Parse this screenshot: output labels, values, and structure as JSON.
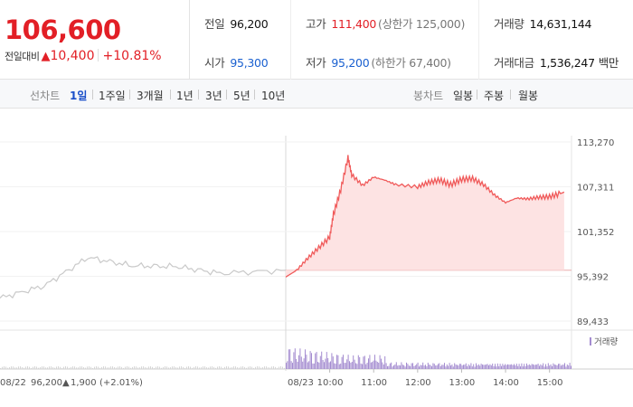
{
  "quote": {
    "price": "106,600",
    "change_label": "전일대비",
    "change_arrow": "▲",
    "change_value": "10,400",
    "change_pct": "+10.81%"
  },
  "stats": {
    "prev_close_label": "전일",
    "prev_close": "96,200",
    "open_label": "시가",
    "open": "95,300",
    "high_label": "고가",
    "high": "111,400",
    "upper_limit": "(상한가 125,000)",
    "low_label": "저가",
    "low": "95,200",
    "lower_limit": "(하한가 67,400)",
    "volume_label": "거래량",
    "volume": "14,631,144",
    "turnover_label": "거래대금",
    "turnover": "1,536,247",
    "turnover_unit": "백만"
  },
  "toolbar": {
    "line_chart_label": "선차트",
    "periods": [
      "1일",
      "1주일",
      "3개월",
      "1년",
      "3년",
      "5년",
      "10년"
    ],
    "active_period": "1일",
    "candle_chart_label": "봉차트",
    "candle_periods": [
      "일봉",
      "주봉",
      "월봉"
    ]
  },
  "chart_data": {
    "type": "area",
    "y_ticks": [
      "113,270",
      "107,311",
      "101,352",
      "95,392",
      "89,433"
    ],
    "y_tick_values": [
      113270,
      107311,
      101352,
      95392,
      89433
    ],
    "ylim": [
      89433,
      113270
    ],
    "baseline_value": 96200,
    "prev_day": {
      "label": "08/22",
      "times": [
        "09:00",
        "10:00",
        "11:00",
        "12:00",
        "13:00",
        "14:00",
        "15:30"
      ],
      "values": [
        92500,
        94100,
        97900,
        96800,
        96700,
        95800,
        96200
      ]
    },
    "today": {
      "label": "08/23",
      "x": [
        "09:00",
        "09:15",
        "09:30",
        "09:45",
        "10:00",
        "10:05",
        "10:15",
        "10:25",
        "10:30",
        "10:45",
        "11:00",
        "11:15",
        "11:30",
        "12:00",
        "12:15",
        "12:30",
        "12:45",
        "13:00",
        "13:15",
        "13:30",
        "13:45",
        "14:00",
        "14:15",
        "14:30",
        "14:45",
        "15:00",
        "15:15",
        "15:20"
      ],
      "y": [
        95300,
        96200,
        97800,
        99200,
        100600,
        103600,
        106900,
        111200,
        108900,
        107500,
        108600,
        108200,
        107600,
        107300,
        107900,
        108200,
        107600,
        108300,
        108400,
        107600,
        106200,
        105200,
        105800,
        105700,
        105900,
        106000,
        106400,
        106600
      ],
      "color": "#f05a5a",
      "fill": "#fde3e3"
    },
    "volume_legend": "거래량",
    "volume_color": "#a48cd0",
    "footer": {
      "date": "08/22",
      "close": "96,200",
      "arrow": "▲",
      "change": "1,900",
      "pct": "(+2.01%)"
    }
  }
}
